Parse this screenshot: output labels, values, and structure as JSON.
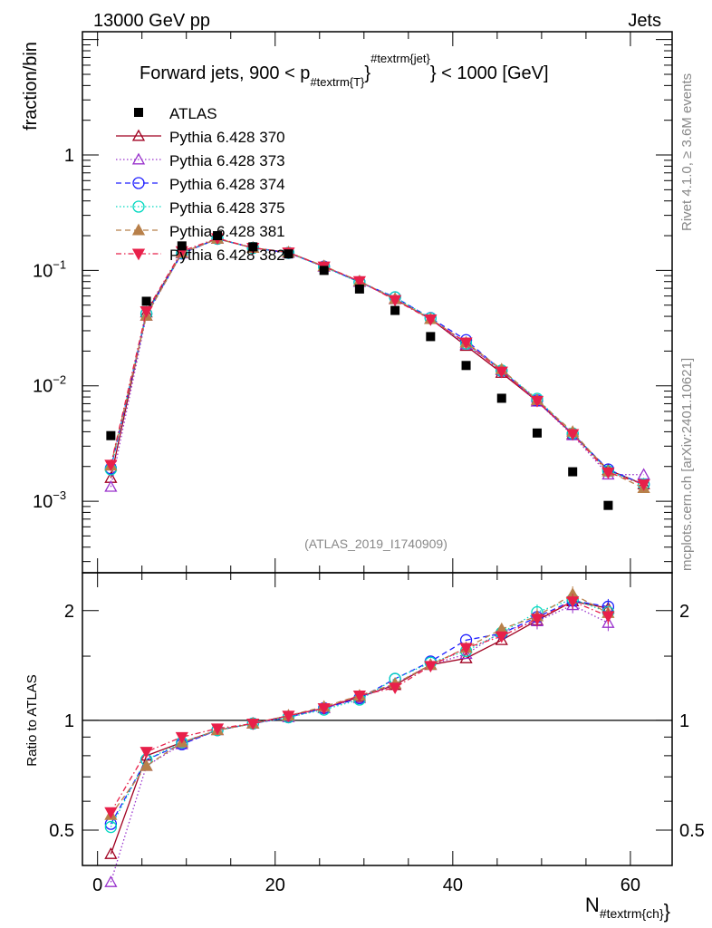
{
  "header": {
    "left": "13000 GeV pp",
    "right": "Jets"
  },
  "side_text": {
    "rivet": "Rivet 4.1.0, ≥ 3.6M events",
    "mcplots": "mcplots.cern.ch [arXiv:2401.10621]"
  },
  "watermark": "(ATLAS_2019_I1740909)",
  "chart_data": [
    {
      "type": "scatter",
      "panel": "main",
      "title": "Forward jets, 900 < p",
      "title_sub": "#textrm{T}",
      "title_sup": "#textrm{jet}",
      "title_end": "} < 1000 [GeV]",
      "title_brace": "}",
      "ylabel": "fraction/bin",
      "yscale": "log",
      "ylim": [
        0.00024,
        11.7
      ],
      "xlim": [
        -1.7,
        64.7
      ],
      "ytick_labels": [
        {
          "base": "1",
          "exp": ""
        },
        {
          "base": "10",
          "exp": "−1"
        },
        {
          "base": "10",
          "exp": "−2"
        },
        {
          "base": "10",
          "exp": "−3"
        }
      ],
      "yticks": [
        1,
        0.1,
        0.01,
        0.001
      ],
      "legend": "top-left",
      "x": [
        1.5,
        5.5,
        9.5,
        13.5,
        17.5,
        21.5,
        25.5,
        29.5,
        33.5,
        37.5,
        41.5,
        45.5,
        49.5,
        53.5,
        57.5,
        61.5
      ],
      "data": {
        "name": "ATLAS",
        "color": "#000000",
        "values": [
          0.0037,
          0.054,
          0.163,
          0.2,
          0.16,
          0.139,
          0.1,
          0.069,
          0.045,
          0.0267,
          0.015,
          0.0078,
          0.0039,
          0.0018,
          0.00092,
          null
        ]
      },
      "series": [
        {
          "name": "Pythia 6.428 370",
          "color": "#a00020",
          "marker": "triangle-open",
          "dash": "",
          "last": 0.0014,
          "ratio": [
            0.43,
            0.8,
            0.87,
            0.94,
            0.98,
            1.03,
            1.08,
            1.16,
            1.25,
            1.42,
            1.48,
            1.66,
            1.88,
            2.12,
            2.03
          ]
        },
        {
          "name": "Pythia 6.428 373",
          "color": "#9932cc",
          "marker": "triangle-open",
          "dash": "1.5,2.5",
          "last": 0.0017,
          "ratio": [
            0.36,
            0.75,
            0.86,
            0.94,
            0.98,
            1.02,
            1.08,
            1.15,
            1.26,
            1.42,
            1.52,
            1.75,
            1.87,
            2.07,
            1.85
          ]
        },
        {
          "name": "Pythia 6.428 374",
          "color": "#2020ff",
          "marker": "circle-open",
          "dash": "6,4",
          "last": 0.0014,
          "ratio": [
            0.52,
            0.78,
            0.86,
            0.94,
            0.98,
            1.02,
            1.08,
            1.15,
            1.3,
            1.45,
            1.66,
            1.73,
            1.92,
            2.13,
            2.05
          ]
        },
        {
          "name": "Pythia 6.428 375",
          "color": "#00d8c0",
          "marker": "circle-open",
          "dash": "1.5,2.5",
          "last": 0.0014,
          "ratio": [
            0.51,
            0.78,
            0.87,
            0.94,
            0.98,
            1.02,
            1.07,
            1.14,
            1.3,
            1.44,
            1.55,
            1.74,
            1.98,
            2.15,
            1.98
          ]
        },
        {
          "name": "Pythia 6.428 381",
          "color": "#b8804a",
          "marker": "triangle-filled",
          "dash": "6,4",
          "last": 0.0013,
          "ratio": [
            0.55,
            0.75,
            0.87,
            0.94,
            0.98,
            1.03,
            1.09,
            1.17,
            1.26,
            1.42,
            1.58,
            1.78,
            1.93,
            2.22,
            1.97
          ]
        },
        {
          "name": "Pythia 6.428 382",
          "color": "#e8204a",
          "marker": "triangle-down-filled",
          "dash": "6,3,1.5,3",
          "last": 0.0014,
          "ratio": [
            0.56,
            0.82,
            0.9,
            0.95,
            0.98,
            1.03,
            1.08,
            1.17,
            1.23,
            1.41,
            1.58,
            1.7,
            1.9,
            2.12,
            1.93
          ]
        }
      ]
    },
    {
      "type": "line",
      "panel": "ratio",
      "ylabel": "Ratio to ATLAS",
      "xlabel": "N",
      "xlabel_sub": "#textrm{ch}",
      "xlabel_brace": "}",
      "yscale": "log",
      "ylim": [
        0.4,
        2.54
      ],
      "yticks": [
        2,
        1,
        0.5
      ],
      "ytick_labels": [
        "2",
        "1",
        "0.5"
      ],
      "xticks": [
        0,
        20,
        40,
        60
      ],
      "xtick_labels": [
        "0",
        "20",
        "40",
        "60"
      ]
    }
  ]
}
